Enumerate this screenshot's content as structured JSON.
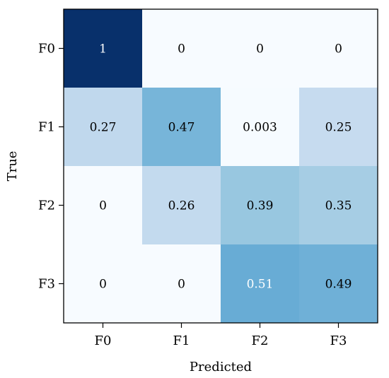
{
  "chart_data": {
    "type": "heatmap",
    "xlabel": "Predicted",
    "ylabel": "True",
    "x_categories": [
      "F0",
      "F1",
      "F2",
      "F3"
    ],
    "y_categories": [
      "F0",
      "F1",
      "F2",
      "F3"
    ],
    "values": [
      [
        1,
        0,
        0,
        0
      ],
      [
        0.27,
        0.47,
        0.003,
        0.25
      ],
      [
        0,
        0.26,
        0.39,
        0.35
      ],
      [
        0,
        0,
        0.51,
        0.49
      ]
    ],
    "labels": [
      [
        "1",
        "0",
        "0",
        "0"
      ],
      [
        "0.27",
        "0.47",
        "0.003",
        "0.25"
      ],
      [
        "0",
        "0.26",
        "0.39",
        "0.35"
      ],
      [
        "0",
        "0",
        "0.51",
        "0.49"
      ]
    ],
    "colormap": "Blues",
    "vmin": 0,
    "vmax": 1,
    "grid": false
  }
}
